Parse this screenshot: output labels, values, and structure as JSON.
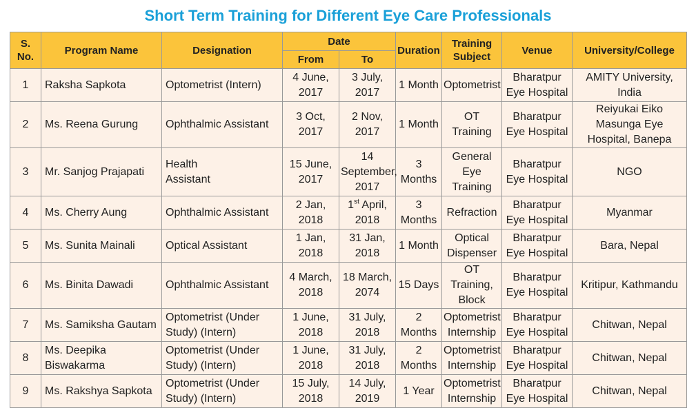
{
  "title": "Short Term Training for Different Eye Care Professionals",
  "headers": {
    "sno": "S. No.",
    "program_name": "Program Name",
    "designation": "Designation",
    "date": "Date",
    "from": "From",
    "to": "To",
    "duration": "Duration",
    "training_subject": "Training Subject",
    "venue": "Venue",
    "university": "University/College"
  },
  "rows": [
    {
      "sno": "1",
      "name": "Raksha Sapkota",
      "designation": "Optometrist (Intern)",
      "from": "4 June, 2017",
      "to": "3 July, 2017",
      "duration": "1 Month",
      "subject": "Optometrist",
      "venue": "Bharatpur Eye Hospital",
      "university": "AMITY University, India"
    },
    {
      "sno": "2",
      "name": "Ms. Reena Gurung",
      "designation": "Ophthalmic Assistant",
      "from": "3 Oct, 2017",
      "to": "2 Nov, 2017",
      "duration": "1 Month",
      "subject": "OT Training",
      "venue": "Bharatpur Eye Hospital",
      "university": "Reiyukai Eiko Masunga Eye Hospital, Banepa"
    },
    {
      "sno": "3",
      "name": "Mr. Sanjog Prajapati",
      "designation": "Health Assistant",
      "from": "15 June, 2017",
      "to": "14 September, 2017",
      "duration": "3 Months",
      "subject": "General Eye Training",
      "venue": "Bharatpur Eye Hospital",
      "university": "NGO"
    },
    {
      "sno": "4",
      "name": "Ms. Cherry Aung",
      "designation": "Ophthalmic Assistant",
      "from": "2 Jan, 2018",
      "to_day": "1",
      "to_sup": "st",
      "to_rest": " April, 2018",
      "duration": "3 Months",
      "subject": "Refraction",
      "venue": "Bharatpur Eye Hospital",
      "university": "Myanmar"
    },
    {
      "sno": "5",
      "name": "Ms. Sunita Mainali",
      "designation": "Optical Assistant",
      "from": "1 Jan, 2018",
      "to": "31 Jan, 2018",
      "duration": "1 Month",
      "subject": "Optical Dispenser",
      "venue": "Bharatpur Eye Hospital",
      "university": "Bara, Nepal"
    },
    {
      "sno": "6",
      "name": "Ms. Binita Dawadi",
      "designation": "Ophthalmic Assistant",
      "from": "4 March, 2018",
      "to": "18 March, 2074",
      "duration": "15 Days",
      "subject": "OT Training, Block",
      "venue": "Bharatpur Eye Hospital",
      "university": "Kritipur, Kathmandu"
    },
    {
      "sno": "7",
      "name": "Ms. Samiksha Gautam",
      "designation": "Optometrist (Under Study) (Intern)",
      "from": "1 June, 2018",
      "to": "31 July, 2018",
      "duration": "2 Months",
      "subject": "Optometrist Internship",
      "venue": "Bharatpur Eye Hospital",
      "university": "Chitwan, Nepal"
    },
    {
      "sno": "8",
      "name": "Ms. Deepika Biswakarma",
      "designation": "Optometrist (Under Study) (Intern)",
      "from": "1 June, 2018",
      "to": "31 July, 2018",
      "duration": "2 Months",
      "subject": "Optometrist Internship",
      "venue": "Bharatpur Eye Hospital",
      "university": "Chitwan, Nepal"
    },
    {
      "sno": "9",
      "name": "Ms. Rakshya Sapkota",
      "designation": "Optometrist (Under Study) (Intern)",
      "from": "15 July, 2018",
      "to": "14 July, 2019",
      "duration": "1 Year",
      "subject": "Optometrist Internship",
      "venue": "Bharatpur Eye Hospital",
      "university": "Chitwan, Nepal"
    }
  ]
}
